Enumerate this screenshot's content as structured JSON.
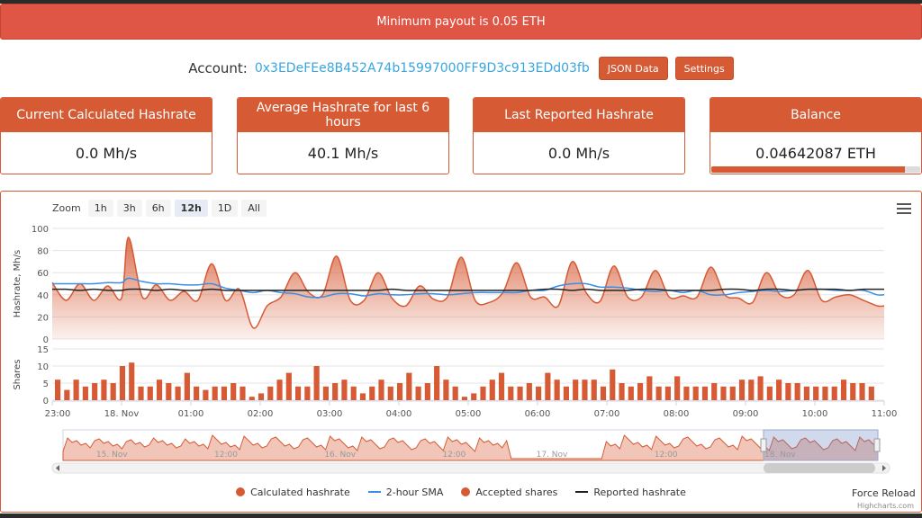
{
  "banner": {
    "text": "Minimum payout is 0.05 ETH"
  },
  "account": {
    "label": "Account:",
    "address": "0x3EDeFEe8B452A74b15997000FF9D3c913EDd03fb",
    "json_button": "JSON Data",
    "settings_button": "Settings"
  },
  "cards": [
    {
      "title": "Current Calculated Hashrate",
      "value": "0.0 Mh/s"
    },
    {
      "title": "Average Hashrate for last 6 hours",
      "value": "40.1 Mh/s"
    },
    {
      "title": "Last Reported Hashrate",
      "value": "0.0 Mh/s"
    },
    {
      "title": "Balance",
      "value": "0.04642087 ETH",
      "progress_fraction": 0.928
    }
  ],
  "zoom": {
    "label": "Zoom",
    "buttons": [
      "1h",
      "3h",
      "6h",
      "12h",
      "1D",
      "All"
    ],
    "active": "12h"
  },
  "colors": {
    "accent": "#d65a34",
    "banner": "#e05646",
    "sma": "#3a8ee6",
    "reported": "#222222",
    "link": "#3aa6e0"
  },
  "chart_data": [
    {
      "type": "area",
      "ylabel": "Hashrate, Mh/s",
      "ylim": [
        0,
        100
      ],
      "yticks": [
        0,
        20,
        40,
        60,
        80,
        100
      ],
      "xticks": [
        "23:00",
        "18. Nov",
        "01:00",
        "02:00",
        "03:00",
        "04:00",
        "05:00",
        "06:00",
        "07:00",
        "08:00",
        "09:00",
        "10:00",
        "11:00"
      ],
      "x_hours": [
        0,
        0.2,
        0.4,
        0.6,
        0.8,
        1.0,
        1.1,
        1.3,
        1.5,
        1.7,
        1.9,
        2.1,
        2.3,
        2.5,
        2.7,
        2.9,
        3.1,
        3.3,
        3.5,
        3.7,
        3.9,
        4.1,
        4.3,
        4.5,
        4.7,
        4.9,
        5.1,
        5.3,
        5.5,
        5.7,
        5.9,
        6.1,
        6.3,
        6.5,
        6.7,
        6.9,
        7.1,
        7.3,
        7.5,
        7.7,
        7.9,
        8.1,
        8.3,
        8.5,
        8.7,
        8.9,
        9.1,
        9.3,
        9.5,
        9.7,
        9.9,
        10.1,
        10.3,
        10.5,
        10.7,
        10.9,
        11.1,
        11.3,
        11.5,
        11.7,
        11.9,
        12.1
      ],
      "series": [
        {
          "name": "Calculated hashrate",
          "values": [
            51,
            35,
            50,
            35,
            48,
            37,
            92,
            38,
            49,
            35,
            43,
            35,
            68,
            35,
            45,
            10,
            30,
            38,
            60,
            42,
            40,
            75,
            35,
            35,
            60,
            37,
            30,
            48,
            36,
            38,
            74,
            35,
            33,
            42,
            69,
            38,
            38,
            30,
            70,
            42,
            34,
            66,
            38,
            38,
            62,
            38,
            39,
            38,
            65,
            40,
            37,
            33,
            60,
            40,
            40,
            62,
            35,
            38,
            40,
            35,
            30,
            30
          ]
        },
        {
          "name": "2-hour SMA",
          "values": [
            50,
            50,
            50,
            50,
            51,
            51,
            55,
            52,
            50,
            50,
            49,
            49,
            50,
            46,
            44,
            42,
            44,
            42,
            41,
            38,
            38,
            41,
            41,
            39,
            41,
            40,
            40,
            41,
            41,
            40,
            41,
            42,
            42,
            42,
            42,
            44,
            44,
            48,
            50,
            50,
            47,
            47,
            46,
            44,
            43,
            44,
            42,
            44,
            40,
            40,
            42,
            43,
            44,
            43,
            44,
            45,
            45,
            44,
            44,
            44,
            40,
            40
          ]
        },
        {
          "name": "Reported hashrate",
          "values": [
            45,
            45,
            44,
            45,
            44,
            44,
            45,
            45,
            44,
            45,
            44,
            44,
            45,
            44,
            44,
            44,
            44,
            44,
            44,
            44,
            44,
            44,
            44,
            44,
            44,
            45,
            44,
            44,
            44,
            44,
            44,
            44,
            44,
            44,
            44,
            44,
            45,
            45,
            44,
            45,
            44,
            44,
            44,
            45,
            45,
            44,
            44,
            44,
            44,
            45,
            45,
            44,
            45,
            45,
            44,
            45,
            45,
            45,
            44,
            45,
            45,
            45
          ]
        }
      ]
    },
    {
      "type": "bar",
      "ylabel": "Shares",
      "ylim": [
        0,
        15
      ],
      "yticks": [
        0,
        5,
        10,
        15
      ],
      "series": [
        {
          "name": "Accepted shares",
          "values": [
            6,
            3,
            6,
            4,
            5,
            6,
            5,
            10,
            11,
            4,
            4,
            6,
            5,
            4,
            8,
            4,
            3,
            4,
            4,
            5,
            4,
            1,
            2,
            4,
            6,
            8,
            4,
            4,
            10,
            4,
            5,
            6,
            4,
            2,
            4,
            6,
            4,
            5,
            8,
            4,
            5,
            10,
            6,
            4,
            1,
            2,
            4,
            6,
            8,
            4,
            4,
            5,
            4,
            8,
            6,
            4,
            6,
            6,
            6,
            4,
            9,
            5,
            4,
            5,
            7,
            4,
            4,
            7,
            4,
            4,
            4,
            5,
            4,
            4,
            6,
            6,
            7,
            4,
            6,
            5,
            5,
            4,
            4,
            4,
            4,
            6,
            5,
            5,
            4
          ]
        }
      ]
    }
  ],
  "navigator": {
    "labels": [
      "15. Nov",
      "12:00",
      "16. Nov",
      "12:00",
      "17. Nov",
      "12:00",
      "18. Nov"
    ]
  },
  "legend": [
    {
      "label": "Calculated hashrate",
      "symbol": "dot",
      "color": "#d65a34"
    },
    {
      "label": "2-hour SMA",
      "symbol": "line",
      "color": "#3a8ee6"
    },
    {
      "label": "Accepted shares",
      "symbol": "dot",
      "color": "#d65a34"
    },
    {
      "label": "Reported hashrate",
      "symbol": "line",
      "color": "#222222"
    }
  ],
  "footer": {
    "force_reload": "Force Reload",
    "credits": "Highcharts.com"
  },
  "icons": {
    "menu": "hamburger-menu-icon"
  }
}
